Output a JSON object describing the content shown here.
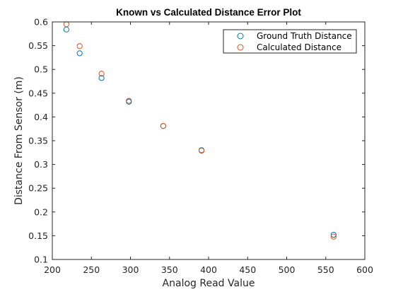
{
  "chart_data": {
    "type": "scatter",
    "title": "Known vs Calculated Distance Error Plot",
    "xlabel": "Analog Read Value",
    "ylabel": "Distance From Sensor (m)",
    "xlim": [
      200,
      600
    ],
    "ylim": [
      0.1,
      0.6
    ],
    "xticks": [
      200,
      250,
      300,
      350,
      400,
      450,
      500,
      550,
      600
    ],
    "yticks": [
      0.1,
      0.15,
      0.2,
      0.25,
      0.3,
      0.35,
      0.4,
      0.45,
      0.5,
      0.55,
      0.6
    ],
    "grid": false,
    "legend_position": "top-right",
    "series": [
      {
        "name": "Ground Truth Distance",
        "color": "#0072BD",
        "marker": "circle-open",
        "x": [
          218,
          235,
          263,
          298,
          342,
          391,
          560
        ],
        "y": [
          0.584,
          0.534,
          0.482,
          0.432,
          0.381,
          0.33,
          0.152
        ]
      },
      {
        "name": "Calculated Distance",
        "color": "#D95319",
        "marker": "circle-open",
        "x": [
          218,
          235,
          263,
          298,
          342,
          391,
          560
        ],
        "y": [
          0.595,
          0.549,
          0.491,
          0.434,
          0.381,
          0.329,
          0.148
        ]
      }
    ]
  }
}
